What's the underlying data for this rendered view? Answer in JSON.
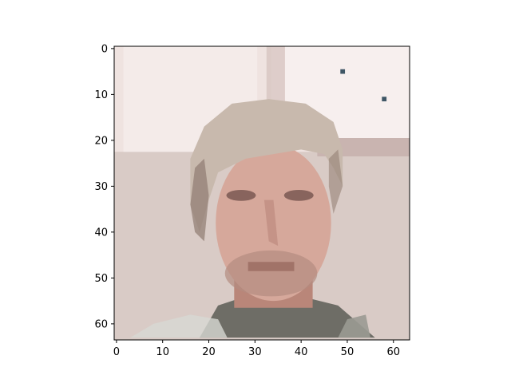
{
  "chart_data": {
    "type": "heatmap",
    "title": "",
    "xlabel": "",
    "ylabel": "",
    "xlim": [
      -0.5,
      63.5
    ],
    "ylim": [
      63.5,
      -0.5
    ],
    "grid": false,
    "x_ticks": [
      0,
      10,
      20,
      30,
      40,
      50,
      60
    ],
    "y_ticks": [
      0,
      10,
      20,
      30,
      40,
      50,
      60
    ],
    "x_tick_labels": [
      "0",
      "10",
      "20",
      "30",
      "40",
      "50",
      "60"
    ],
    "y_tick_labels": [
      "0",
      "10",
      "20",
      "30",
      "40",
      "50",
      "60"
    ],
    "image": {
      "description_visible": "64x64 pixelated RGB image",
      "grid_size": [
        64,
        64
      ]
    },
    "colors": {
      "axes": "#000000",
      "bg_top": "#efe3e0",
      "window": "#f7efee",
      "window_frame": "#d7c4c1",
      "wall": "#d9cbc6",
      "hair": "#c8b9ad",
      "hair_dark": "#8f7b70",
      "skin": "#d6a89b",
      "skin_shadow": "#b98679",
      "mouth": "#9a6a60",
      "beard": "#b48b80",
      "shirt": "#6e6d66",
      "shirt_light": "#d7d8d3",
      "eye": "#6d4e48",
      "spot": "#3f5665"
    }
  }
}
